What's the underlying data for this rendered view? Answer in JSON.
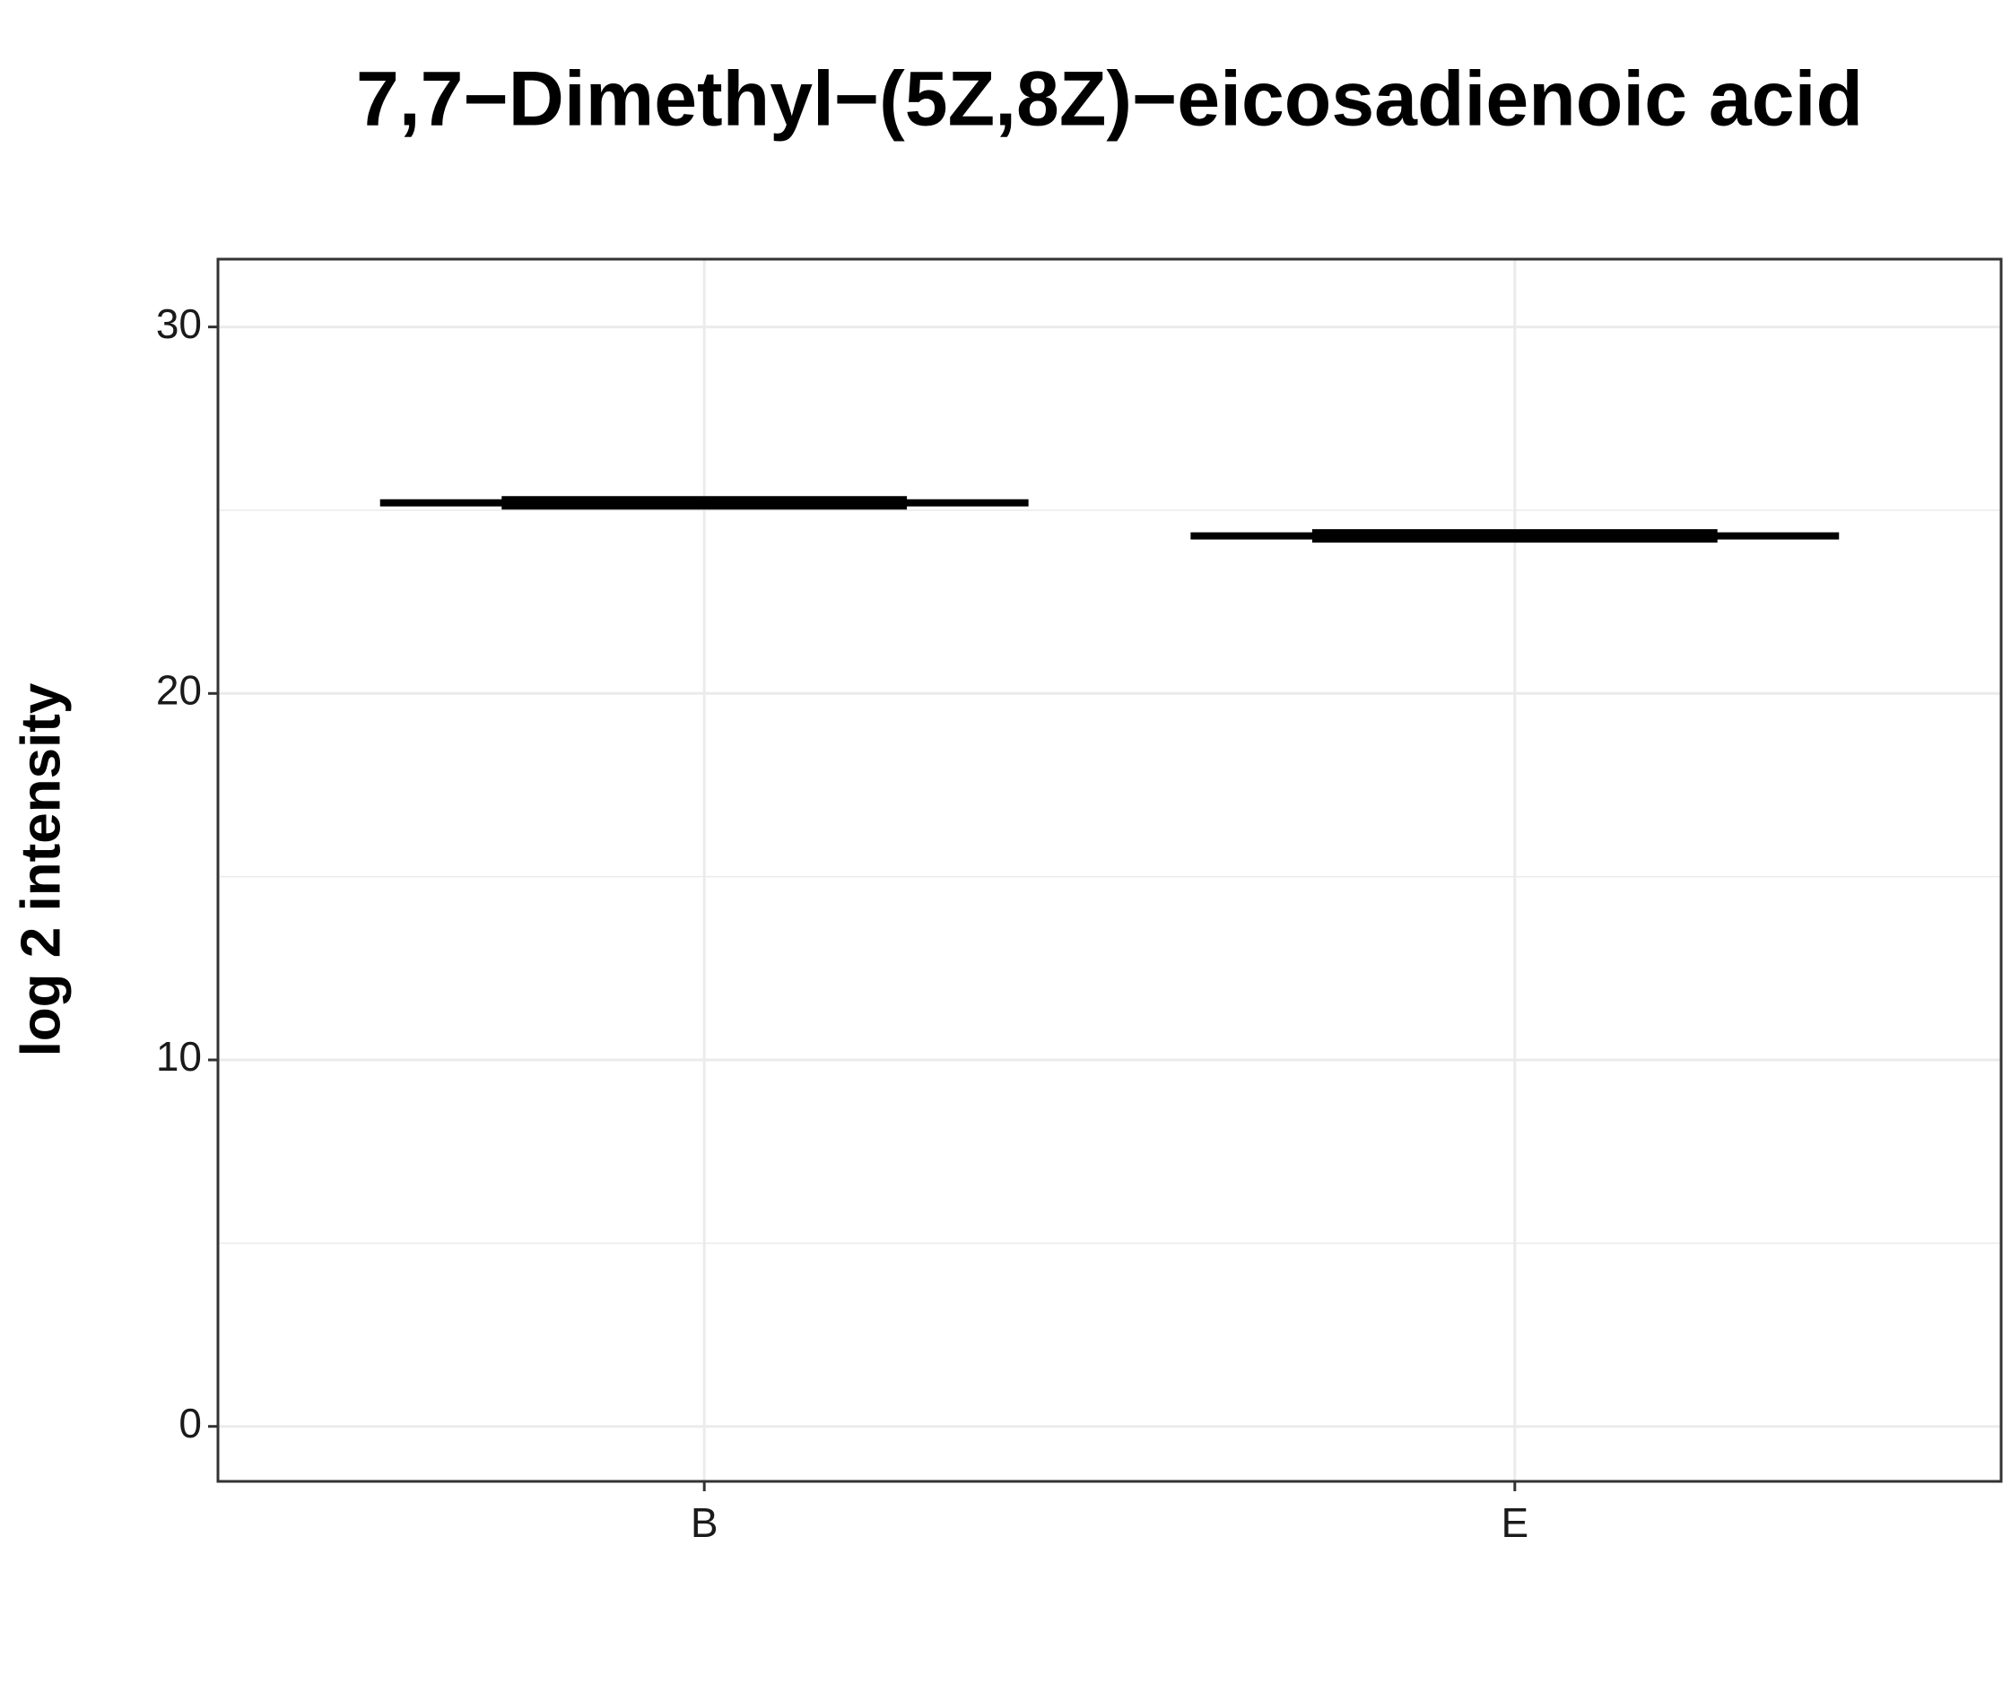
{
  "chart_data": {
    "type": "box",
    "title": "7,7−Dimethyl−(5Z,8Z)−eicosadienoic acid",
    "y_label": "log 2 intensity",
    "categories": [
      "B",
      "E"
    ],
    "values": [
      25.2,
      24.3
    ],
    "color": "#000000",
    "ylim": [
      -1.5,
      31.85
    ],
    "yticks": [
      0,
      10,
      20,
      30
    ],
    "grid": true
  }
}
